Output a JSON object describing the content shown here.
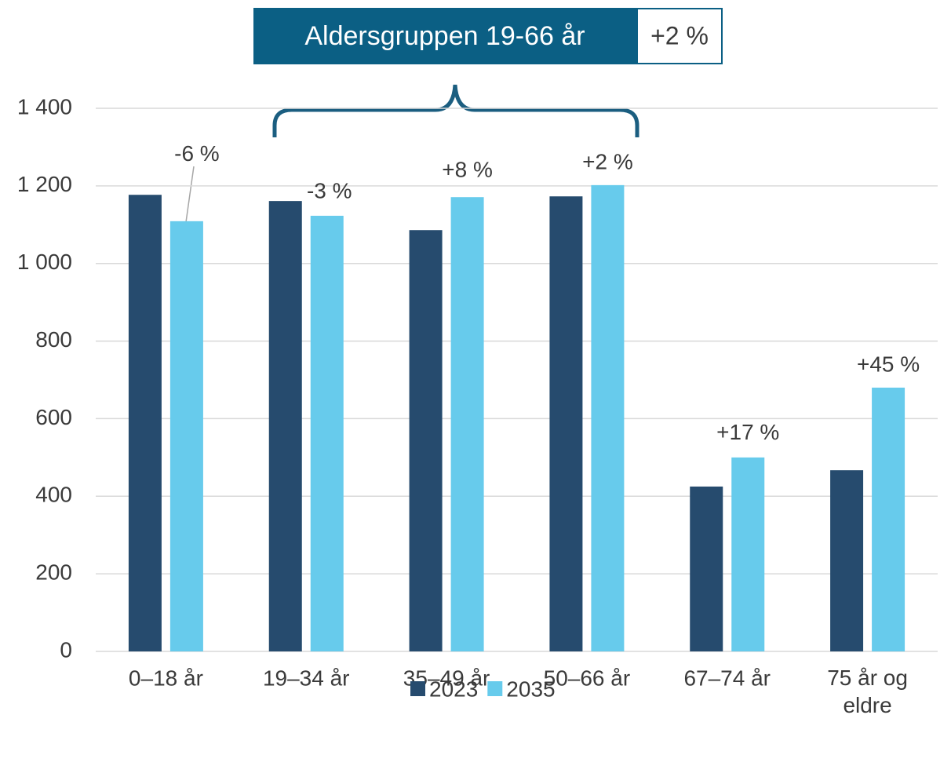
{
  "chart_data": {
    "type": "bar",
    "header": {
      "title": "Aldersgruppen 19-66 år",
      "change": "+2 %"
    },
    "categories": [
      "0–18 år",
      "19–34 år",
      "35–49 år",
      "50–66 år",
      "67–74 år",
      "75 år og eldre"
    ],
    "series": [
      {
        "name": "2023",
        "color": "#264b6e",
        "values": [
          1177,
          1161,
          1086,
          1173,
          425,
          467
        ]
      },
      {
        "name": "2035",
        "color": "#67cbec",
        "values": [
          1109,
          1123,
          1171,
          1202,
          500,
          680
        ]
      }
    ],
    "annotations": [
      "-6 %",
      "-3 %",
      "+8 %",
      "+2 %",
      "+17 %",
      "+45 %"
    ],
    "ylim": [
      0,
      1400
    ],
    "yticks": [
      0,
      200,
      400,
      600,
      800,
      {
        "value": 1000,
        "label": "1 000"
      },
      {
        "value": 1200,
        "label": "1 200"
      },
      {
        "value": 1400,
        "label": "1 400"
      }
    ],
    "grid": true,
    "legend": "bottom"
  }
}
